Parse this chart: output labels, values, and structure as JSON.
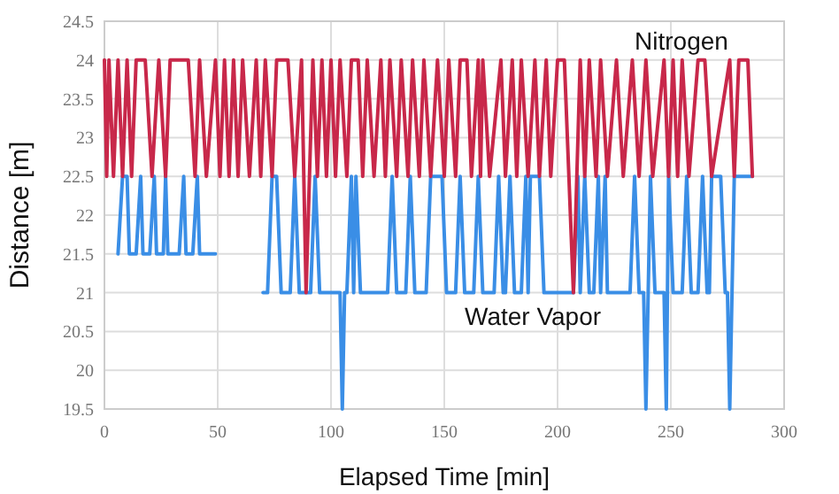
{
  "chart_data": {
    "type": "line",
    "xlabel": "Elapsed Time [min]",
    "ylabel": "Distance [m]",
    "xlim": [
      0,
      300
    ],
    "xticks": [
      0,
      50,
      100,
      150,
      200,
      250,
      300
    ],
    "ylim": [
      19.5,
      24.5
    ],
    "yticks": [
      19.5,
      20,
      20.5,
      21,
      21.5,
      22,
      22.5,
      23,
      23.5,
      24,
      24.5
    ],
    "grid": true,
    "legend": false,
    "marker": "none",
    "line_style": "solid",
    "series": [
      {
        "name": "Nitrogen",
        "color": "#c8284a",
        "x": [
          0,
          1,
          2,
          4,
          6,
          8,
          10,
          12,
          14,
          18,
          21,
          24,
          27,
          29,
          37,
          40,
          42,
          45,
          49,
          51,
          53,
          55,
          57,
          59,
          61,
          64,
          67,
          69,
          71,
          74,
          76,
          81,
          84,
          87,
          89,
          92,
          94,
          96,
          98,
          100,
          102,
          104,
          107,
          109,
          112,
          114,
          116,
          119,
          122,
          124,
          126,
          129,
          131,
          134,
          136,
          139,
          141,
          144,
          147,
          150,
          152,
          155,
          157,
          160,
          162,
          165,
          166,
          167,
          170,
          175,
          177,
          180,
          182,
          184,
          187,
          190,
          192,
          195,
          197,
          200,
          203,
          205,
          207,
          210,
          212,
          214,
          217,
          219,
          222,
          226,
          229,
          233,
          236,
          239,
          242,
          247,
          249,
          251,
          253,
          255,
          258,
          262,
          265,
          268,
          276,
          278,
          280,
          284,
          286
        ],
        "values": [
          24,
          22.5,
          24,
          22.5,
          24,
          22.5,
          24,
          22.5,
          24,
          24,
          22.5,
          24,
          22.5,
          24,
          24,
          22.5,
          24,
          22.5,
          24,
          22.5,
          24,
          22.5,
          24,
          22.5,
          24,
          22.5,
          24,
          22.5,
          24,
          22.5,
          24,
          24,
          22.5,
          24,
          21,
          24,
          22.5,
          24,
          22.5,
          24,
          22.5,
          24,
          22.5,
          24,
          24,
          22.5,
          24,
          22.5,
          24,
          22.5,
          24,
          22.5,
          24,
          22.5,
          24,
          22.5,
          24,
          22.5,
          24,
          22.5,
          24,
          22.5,
          24,
          24,
          22.5,
          24,
          22.5,
          24,
          22.5,
          24,
          22.5,
          24,
          22.5,
          24,
          22.5,
          24,
          22.5,
          24,
          22.5,
          24,
          24,
          22.5,
          21,
          24,
          22.5,
          24,
          22.5,
          24,
          22.5,
          24,
          22.5,
          24,
          22.5,
          24,
          22.5,
          24,
          22.5,
          24,
          22.5,
          24,
          22.5,
          24,
          24,
          22.5,
          24,
          22.5,
          24,
          24,
          22.5
        ]
      },
      {
        "name": "Water Vapor",
        "color": "#3a8ee6",
        "x": [
          6,
          8,
          10,
          11,
          14,
          16,
          17,
          20,
          22,
          23,
          26,
          27,
          28,
          33,
          35,
          36,
          39,
          41,
          42,
          49,
          60,
          70,
          72,
          74,
          76,
          78,
          82,
          84,
          86,
          91,
          93,
          95,
          104,
          105,
          106,
          107,
          109,
          110,
          111,
          113,
          125,
          127,
          129,
          133,
          135,
          137,
          142,
          144,
          149,
          151,
          155,
          157,
          159,
          163,
          165,
          167,
          172,
          174,
          176,
          177,
          179,
          181,
          184,
          186,
          187,
          188,
          192,
          194,
          204,
          207,
          209,
          210,
          212,
          214,
          216,
          218,
          219,
          221,
          222,
          232,
          234,
          236,
          238,
          239,
          240,
          241,
          243,
          247,
          248,
          249,
          251,
          255,
          257,
          259,
          262,
          264,
          266,
          267,
          268,
          272,
          274,
          275,
          276,
          278,
          286
        ],
        "values": [
          21.5,
          22.5,
          22.5,
          21.5,
          21.5,
          22.5,
          21.5,
          21.5,
          22.5,
          21.5,
          21.5,
          22.5,
          21.5,
          21.5,
          22.5,
          21.5,
          21.5,
          22.5,
          21.5,
          21.5,
          null,
          21,
          21,
          22.5,
          22.5,
          21,
          21,
          22.5,
          21,
          21,
          22.5,
          21,
          21,
          19.5,
          21,
          21,
          22.5,
          21,
          22.5,
          21,
          21,
          22.5,
          21,
          21,
          22.5,
          21,
          21,
          22.5,
          22.5,
          21,
          21,
          22.5,
          21,
          21,
          22.5,
          21,
          21,
          22.5,
          21,
          21,
          22.5,
          21,
          21,
          22.5,
          21,
          22.5,
          22.5,
          21,
          21,
          21,
          22.5,
          21,
          22.5,
          21,
          21,
          22.5,
          21,
          22.5,
          21,
          21,
          22.5,
          21,
          21,
          19.5,
          21,
          22.5,
          21,
          21,
          19.5,
          22.5,
          21,
          21,
          22.5,
          21,
          21,
          22.5,
          21,
          21,
          22.5,
          22.5,
          21,
          21,
          19.5,
          22.5,
          22.5
        ]
      }
    ]
  }
}
